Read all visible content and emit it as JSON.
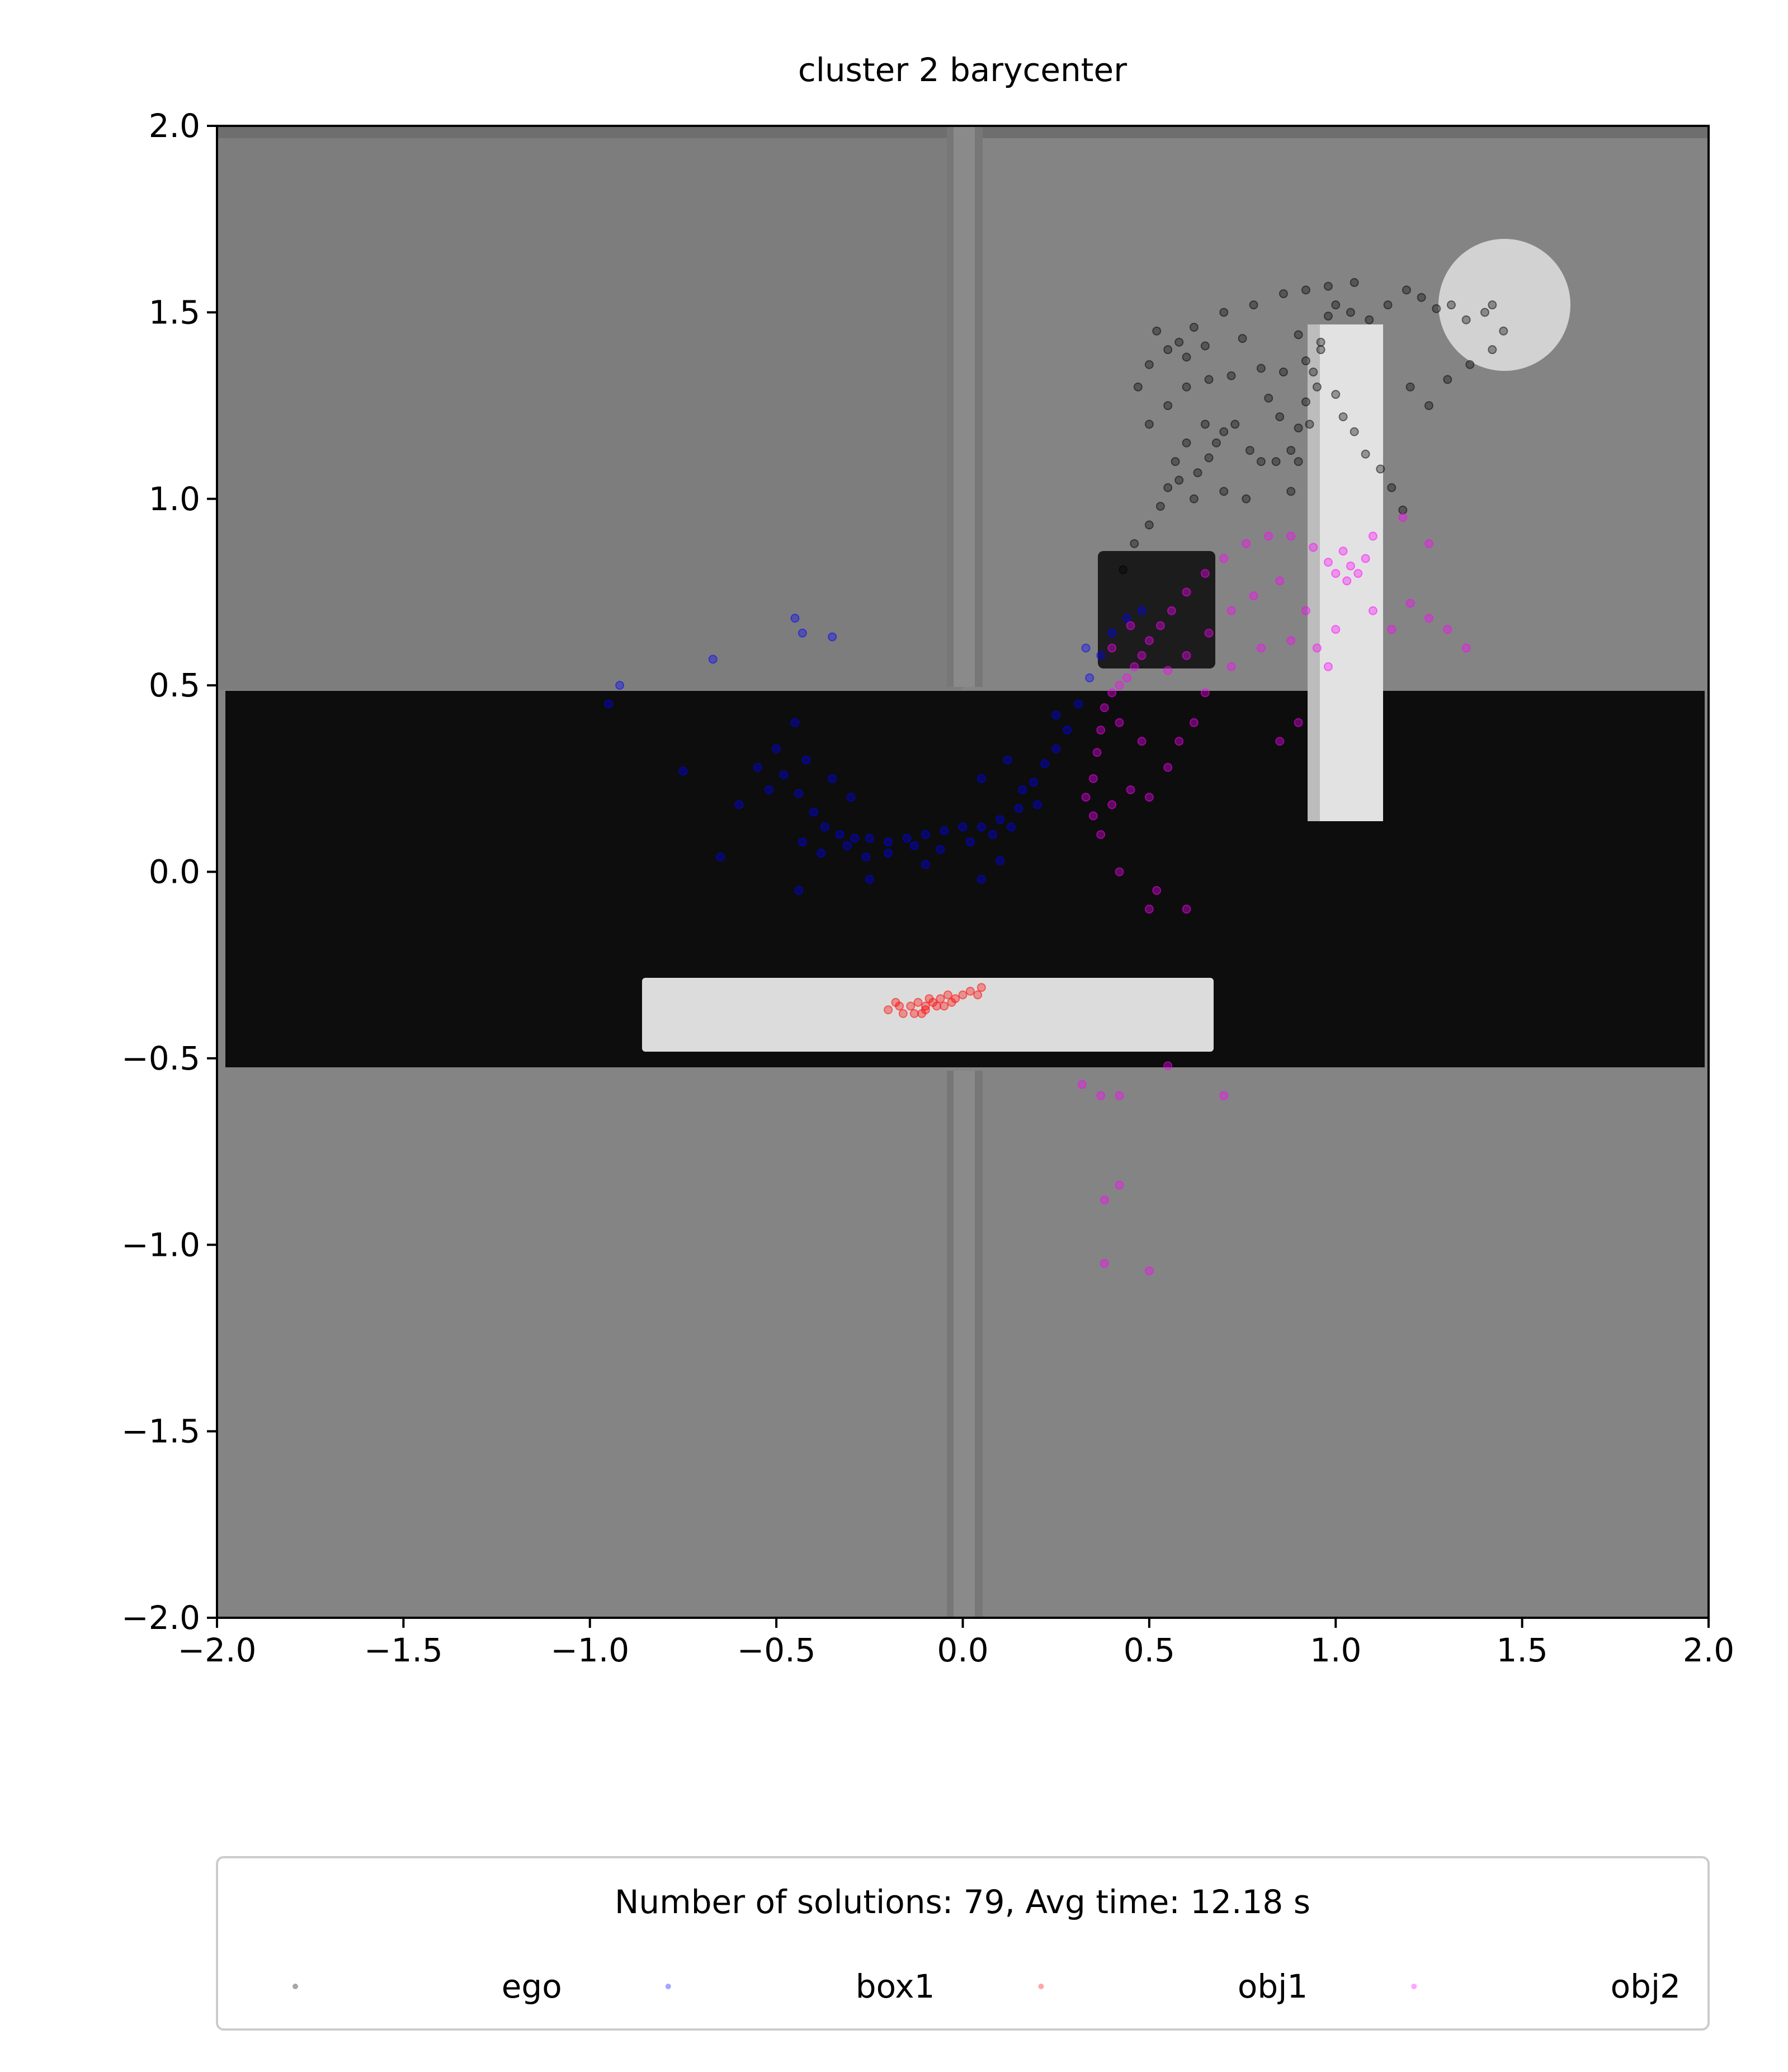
{
  "chart_data": {
    "type": "scatter",
    "title": "cluster 2 barycenter",
    "xlabel": "",
    "ylabel": "",
    "xlim": [
      -2.0,
      2.0
    ],
    "ylim": [
      -2.0,
      2.0
    ],
    "xticks": [
      -2.0,
      -1.5,
      -1.0,
      -0.5,
      0.0,
      0.5,
      1.0,
      1.5,
      2.0
    ],
    "yticks": [
      -2.0,
      -1.5,
      -1.0,
      -0.5,
      0.0,
      0.5,
      1.0,
      1.5,
      2.0
    ],
    "xtick_labels": [
      "−2.0",
      "−1.5",
      "−1.0",
      "−0.5",
      "0.0",
      "0.5",
      "1.0",
      "1.5",
      "2.0"
    ],
    "ytick_labels": [
      "−2.0",
      "−1.5",
      "−1.0",
      "−0.5",
      "0.0",
      "0.5",
      "1.0",
      "1.5",
      "2.0"
    ],
    "grid": false,
    "legend_placement": "below plot, centered",
    "legend": {
      "title": "Number of solutions: 79, Avg time: 12.18 s",
      "entries": [
        "ego",
        "box1",
        "obj1",
        "obj2"
      ],
      "columns": 4
    },
    "background_scene": {
      "floor_color": "#848484",
      "dark_band_color": "#0d0d0d",
      "wall_color": "#7a7a7a",
      "object_color": "#dcdcdc",
      "dark_box_color": "#1c1c1c"
    },
    "series": [
      {
        "name": "ego",
        "color": "#000000",
        "points": [
          [
            0.43,
            0.81
          ],
          [
            0.46,
            0.88
          ],
          [
            0.5,
            0.93
          ],
          [
            0.53,
            0.98
          ],
          [
            0.55,
            1.03
          ],
          [
            0.58,
            1.05
          ],
          [
            0.63,
            1.07
          ],
          [
            0.66,
            1.11
          ],
          [
            0.68,
            1.15
          ],
          [
            0.7,
            1.18
          ],
          [
            0.73,
            1.2
          ],
          [
            0.77,
            1.13
          ],
          [
            0.8,
            1.1
          ],
          [
            0.84,
            1.1
          ],
          [
            0.88,
            1.13
          ],
          [
            0.9,
            1.19
          ],
          [
            0.92,
            1.26
          ],
          [
            0.94,
            1.34
          ],
          [
            0.96,
            1.42
          ],
          [
            0.98,
            1.49
          ],
          [
            1.0,
            1.52
          ],
          [
            1.04,
            1.5
          ],
          [
            1.09,
            1.48
          ],
          [
            1.14,
            1.52
          ],
          [
            1.19,
            1.56
          ],
          [
            1.23,
            1.54
          ],
          [
            1.27,
            1.51
          ],
          [
            1.31,
            1.52
          ],
          [
            1.35,
            1.48
          ],
          [
            1.4,
            1.5
          ],
          [
            1.42,
            1.52
          ],
          [
            0.47,
            1.3
          ],
          [
            0.5,
            1.36
          ],
          [
            0.55,
            1.4
          ],
          [
            0.62,
            1.46
          ],
          [
            0.7,
            1.5
          ],
          [
            0.78,
            1.52
          ],
          [
            0.86,
            1.55
          ],
          [
            0.92,
            1.56
          ],
          [
            0.98,
            1.57
          ],
          [
            1.05,
            1.58
          ],
          [
            0.55,
            1.25
          ],
          [
            0.6,
            1.3
          ],
          [
            0.66,
            1.32
          ],
          [
            0.72,
            1.33
          ],
          [
            0.8,
            1.35
          ],
          [
            0.86,
            1.34
          ],
          [
            0.92,
            1.37
          ],
          [
            0.95,
            1.3
          ],
          [
            0.93,
            1.2
          ],
          [
            0.9,
            1.1
          ],
          [
            0.88,
            1.02
          ],
          [
            1.0,
            1.28
          ],
          [
            1.02,
            1.22
          ],
          [
            1.05,
            1.18
          ],
          [
            1.08,
            1.12
          ],
          [
            1.12,
            1.08
          ],
          [
            1.15,
            1.03
          ],
          [
            1.18,
            0.97
          ],
          [
            1.2,
            1.3
          ],
          [
            1.25,
            1.25
          ],
          [
            1.3,
            1.32
          ],
          [
            1.36,
            1.36
          ],
          [
            1.42,
            1.4
          ],
          [
            1.45,
            1.45
          ],
          [
            0.52,
            1.45
          ],
          [
            0.58,
            1.42
          ],
          [
            0.6,
            1.38
          ],
          [
            0.65,
            1.41
          ],
          [
            0.75,
            1.43
          ],
          [
            0.82,
            1.27
          ],
          [
            0.85,
            1.22
          ],
          [
            0.6,
            1.15
          ],
          [
            0.65,
            1.2
          ],
          [
            0.5,
            1.2
          ],
          [
            0.57,
            1.1
          ],
          [
            0.62,
            1.0
          ],
          [
            0.7,
            1.02
          ],
          [
            0.76,
            1.0
          ],
          [
            0.9,
            1.44
          ],
          [
            0.96,
            1.4
          ]
        ]
      },
      {
        "name": "box1",
        "color": "#0000ff",
        "points": [
          [
            -0.5,
            0.33
          ],
          [
            -0.48,
            0.26
          ],
          [
            -0.44,
            0.21
          ],
          [
            -0.4,
            0.16
          ],
          [
            -0.37,
            0.12
          ],
          [
            -0.33,
            0.1
          ],
          [
            -0.29,
            0.09
          ],
          [
            -0.25,
            0.09
          ],
          [
            -0.2,
            0.08
          ],
          [
            -0.15,
            0.09
          ],
          [
            -0.1,
            0.1
          ],
          [
            -0.05,
            0.11
          ],
          [
            0.0,
            0.12
          ],
          [
            0.05,
            0.12
          ],
          [
            0.1,
            0.14
          ],
          [
            0.15,
            0.17
          ],
          [
            0.19,
            0.24
          ],
          [
            0.22,
            0.29
          ],
          [
            0.25,
            0.33
          ],
          [
            0.28,
            0.38
          ],
          [
            0.31,
            0.45
          ],
          [
            0.34,
            0.52
          ],
          [
            0.37,
            0.58
          ],
          [
            0.4,
            0.64
          ],
          [
            0.44,
            0.68
          ],
          [
            0.48,
            0.7
          ],
          [
            -0.43,
            0.08
          ],
          [
            -0.38,
            0.05
          ],
          [
            -0.31,
            0.07
          ],
          [
            -0.26,
            0.04
          ],
          [
            -0.2,
            0.05
          ],
          [
            -0.13,
            0.07
          ],
          [
            -0.06,
            0.06
          ],
          [
            0.02,
            0.08
          ],
          [
            0.08,
            0.1
          ],
          [
            0.13,
            0.12
          ],
          [
            0.16,
            0.22
          ],
          [
            0.2,
            0.18
          ],
          [
            -0.45,
            0.4
          ],
          [
            -0.42,
            0.3
          ],
          [
            -0.35,
            0.25
          ],
          [
            -0.3,
            0.2
          ],
          [
            -0.55,
            0.28
          ],
          [
            -0.52,
            0.22
          ],
          [
            -0.6,
            0.18
          ],
          [
            -0.45,
            0.68
          ],
          [
            -0.43,
            0.64
          ],
          [
            -0.35,
            0.63
          ],
          [
            -0.67,
            0.57
          ],
          [
            -0.92,
            0.5
          ],
          [
            -0.95,
            0.45
          ],
          [
            -0.75,
            0.27
          ],
          [
            -0.65,
            0.04
          ],
          [
            -0.44,
            -0.05
          ],
          [
            -0.25,
            -0.02
          ],
          [
            -0.1,
            0.02
          ],
          [
            0.05,
            -0.02
          ],
          [
            0.1,
            0.03
          ],
          [
            0.05,
            0.25
          ],
          [
            0.12,
            0.3
          ],
          [
            0.25,
            0.42
          ],
          [
            0.33,
            0.6
          ]
        ]
      },
      {
        "name": "obj1",
        "color": "#ff0000",
        "points": [
          [
            -0.2,
            -0.37
          ],
          [
            -0.17,
            -0.36
          ],
          [
            -0.14,
            -0.36
          ],
          [
            -0.12,
            -0.35
          ],
          [
            -0.1,
            -0.36
          ],
          [
            -0.08,
            -0.35
          ],
          [
            -0.06,
            -0.34
          ],
          [
            -0.04,
            -0.33
          ],
          [
            -0.02,
            -0.34
          ],
          [
            0.0,
            -0.33
          ],
          [
            -0.16,
            -0.38
          ],
          [
            -0.13,
            -0.38
          ],
          [
            -0.1,
            -0.37
          ],
          [
            -0.07,
            -0.36
          ],
          [
            -0.05,
            -0.36
          ],
          [
            -0.03,
            -0.35
          ],
          [
            0.02,
            -0.32
          ],
          [
            0.04,
            -0.33
          ],
          [
            -0.18,
            -0.35
          ],
          [
            -0.09,
            -0.34
          ],
          [
            -0.11,
            -0.38
          ],
          [
            0.05,
            -0.31
          ]
        ]
      },
      {
        "name": "obj2",
        "color": "#ff00ff",
        "points": [
          [
            0.35,
            0.25
          ],
          [
            0.36,
            0.32
          ],
          [
            0.37,
            0.38
          ],
          [
            0.38,
            0.44
          ],
          [
            0.4,
            0.48
          ],
          [
            0.42,
            0.5
          ],
          [
            0.44,
            0.52
          ],
          [
            0.46,
            0.55
          ],
          [
            0.48,
            0.58
          ],
          [
            0.5,
            0.62
          ],
          [
            0.53,
            0.66
          ],
          [
            0.56,
            0.7
          ],
          [
            0.6,
            0.75
          ],
          [
            0.65,
            0.8
          ],
          [
            0.7,
            0.84
          ],
          [
            0.76,
            0.88
          ],
          [
            0.82,
            0.9
          ],
          [
            0.88,
            0.9
          ],
          [
            0.94,
            0.87
          ],
          [
            0.98,
            0.83
          ],
          [
            1.0,
            0.8
          ],
          [
            1.03,
            0.78
          ],
          [
            1.06,
            0.8
          ],
          [
            1.08,
            0.84
          ],
          [
            1.02,
            0.86
          ],
          [
            1.04,
            0.82
          ],
          [
            0.33,
            0.2
          ],
          [
            0.35,
            0.15
          ],
          [
            0.37,
            0.1
          ],
          [
            0.4,
            0.18
          ],
          [
            0.45,
            0.22
          ],
          [
            0.5,
            0.2
          ],
          [
            0.55,
            0.28
          ],
          [
            0.58,
            0.35
          ],
          [
            0.62,
            0.4
          ],
          [
            0.65,
            0.48
          ],
          [
            0.72,
            0.55
          ],
          [
            0.8,
            0.6
          ],
          [
            0.88,
            0.62
          ],
          [
            0.95,
            0.6
          ],
          [
            0.98,
            0.55
          ],
          [
            1.0,
            0.65
          ],
          [
            0.6,
            0.58
          ],
          [
            0.66,
            0.64
          ],
          [
            0.72,
            0.7
          ],
          [
            0.78,
            0.74
          ],
          [
            0.85,
            0.78
          ],
          [
            0.92,
            0.7
          ],
          [
            1.1,
            0.7
          ],
          [
            1.15,
            0.65
          ],
          [
            1.2,
            0.72
          ],
          [
            1.25,
            0.68
          ],
          [
            1.3,
            0.65
          ],
          [
            1.35,
            0.6
          ],
          [
            1.1,
            0.9
          ],
          [
            1.18,
            0.95
          ],
          [
            1.25,
            0.88
          ],
          [
            0.42,
            0.0
          ],
          [
            0.5,
            -0.1
          ],
          [
            0.6,
            -0.1
          ],
          [
            0.52,
            -0.05
          ],
          [
            0.32,
            -0.57
          ],
          [
            0.37,
            -0.6
          ],
          [
            0.42,
            -0.6
          ],
          [
            0.55,
            -0.52
          ],
          [
            0.7,
            -0.6
          ],
          [
            0.38,
            -0.88
          ],
          [
            0.42,
            -0.84
          ],
          [
            0.38,
            -1.05
          ],
          [
            0.5,
            -1.07
          ],
          [
            0.48,
            0.35
          ],
          [
            0.42,
            0.4
          ],
          [
            0.4,
            0.6
          ],
          [
            0.45,
            0.66
          ],
          [
            0.55,
            0.54
          ],
          [
            0.85,
            0.35
          ],
          [
            0.9,
            0.4
          ]
        ]
      }
    ]
  }
}
